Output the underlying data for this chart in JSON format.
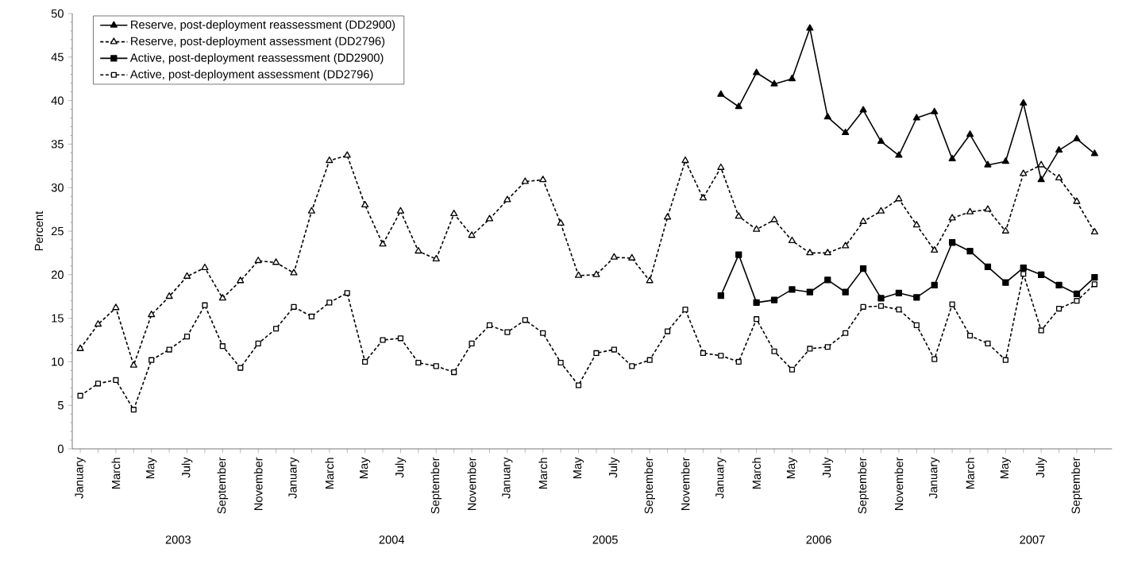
{
  "chart_data": {
    "type": "line",
    "ylabel": "Percent",
    "categories": [
      "January",
      null,
      "March",
      null,
      "May",
      null,
      "July",
      null,
      "September",
      null,
      "November",
      null,
      "January",
      null,
      "March",
      null,
      "May",
      null,
      "July",
      null,
      "September",
      null,
      "November",
      null,
      "January",
      null,
      "March",
      null,
      "May",
      null,
      "July",
      null,
      "September",
      null,
      "November",
      null,
      "January",
      null,
      "March",
      null,
      "May",
      null,
      "July",
      null,
      "September",
      null,
      "November",
      null,
      "January",
      null,
      "March",
      null,
      "May",
      null,
      "July",
      null,
      "September",
      null
    ],
    "annotations": [
      "2003",
      "2004",
      "2005",
      "2006",
      "2007"
    ],
    "ylim": [
      0,
      50
    ],
    "yticks": [
      0,
      5,
      10,
      15,
      20,
      25,
      30,
      35,
      40,
      45,
      50
    ],
    "legend": "top left",
    "grid": false,
    "series": [
      {
        "name": "Reserve, post-deployment reassessment (DD2900)",
        "color": "#000000",
        "marker": "triangle",
        "line_style": "solid",
        "values": [
          null,
          null,
          null,
          null,
          null,
          null,
          null,
          null,
          null,
          null,
          null,
          null,
          null,
          null,
          null,
          null,
          null,
          null,
          null,
          null,
          null,
          null,
          null,
          null,
          null,
          null,
          null,
          null,
          null,
          null,
          null,
          null,
          null,
          null,
          null,
          null,
          40.7,
          39.3,
          43.2,
          41.9,
          42.5,
          48.3,
          38.1,
          36.3,
          38.9,
          35.3,
          33.7,
          38,
          38.7,
          33.3,
          36.1,
          32.6,
          33,
          39.7,
          30.9,
          34.3,
          35.6,
          33.9
        ]
      },
      {
        "name": "Reserve, post-deployment assessment (DD2796)",
        "color": "#000000",
        "marker": "triangle",
        "line_style": "dashed",
        "values": [
          11.5,
          14.3,
          16.2,
          9.6,
          15.4,
          17.5,
          19.8,
          20.8,
          17.3,
          19.3,
          21.6,
          21.4,
          20.2,
          27.3,
          33.1,
          33.7,
          28,
          23.5,
          27.3,
          22.7,
          21.8,
          27,
          24.5,
          26.4,
          28.6,
          30.7,
          30.9,
          25.9,
          19.9,
          20,
          22,
          21.9,
          19.3,
          26.6,
          33.1,
          28.8,
          32.3,
          26.7,
          25.2,
          26.3,
          23.9,
          22.5,
          22.5,
          23.3,
          26.1,
          27.3,
          28.7,
          25.7,
          22.8,
          26.5,
          27.2,
          27.5,
          25,
          31.6,
          32.6,
          31.1,
          28.4,
          24.9
        ]
      },
      {
        "name": "Active, post-deployment reassessment (DD2900)",
        "color": "#000000",
        "marker": "square",
        "line_style": "solid",
        "values": [
          null,
          null,
          null,
          null,
          null,
          null,
          null,
          null,
          null,
          null,
          null,
          null,
          null,
          null,
          null,
          null,
          null,
          null,
          null,
          null,
          null,
          null,
          null,
          null,
          null,
          null,
          null,
          null,
          null,
          null,
          null,
          null,
          null,
          null,
          null,
          null,
          17.6,
          22.3,
          16.8,
          17.1,
          18.3,
          18,
          19.4,
          18,
          20.7,
          17.3,
          17.9,
          17.4,
          18.8,
          23.7,
          22.7,
          20.9,
          19.1,
          20.8,
          20,
          18.8,
          17.8,
          19.7
        ]
      },
      {
        "name": "Active, post-deployment assessment (DD2796)",
        "color": "#000000",
        "marker": "square",
        "line_style": "dashed",
        "values": [
          6.1,
          7.5,
          7.9,
          4.5,
          10.2,
          11.4,
          12.9,
          16.5,
          11.8,
          9.3,
          12.1,
          13.8,
          16.3,
          15.2,
          16.8,
          17.9,
          10,
          12.5,
          12.7,
          9.9,
          9.5,
          8.8,
          12.1,
          14.2,
          13.4,
          14.8,
          13.3,
          9.9,
          7.3,
          11,
          11.4,
          9.5,
          10.2,
          13.5,
          16,
          11,
          10.7,
          10,
          14.9,
          11.2,
          9.1,
          11.5,
          11.7,
          13.3,
          16.3,
          16.4,
          16,
          14.2,
          10.3,
          16.6,
          13,
          12.1,
          10.2,
          20.1,
          13.6,
          16.1,
          17,
          18.9
        ]
      }
    ]
  }
}
